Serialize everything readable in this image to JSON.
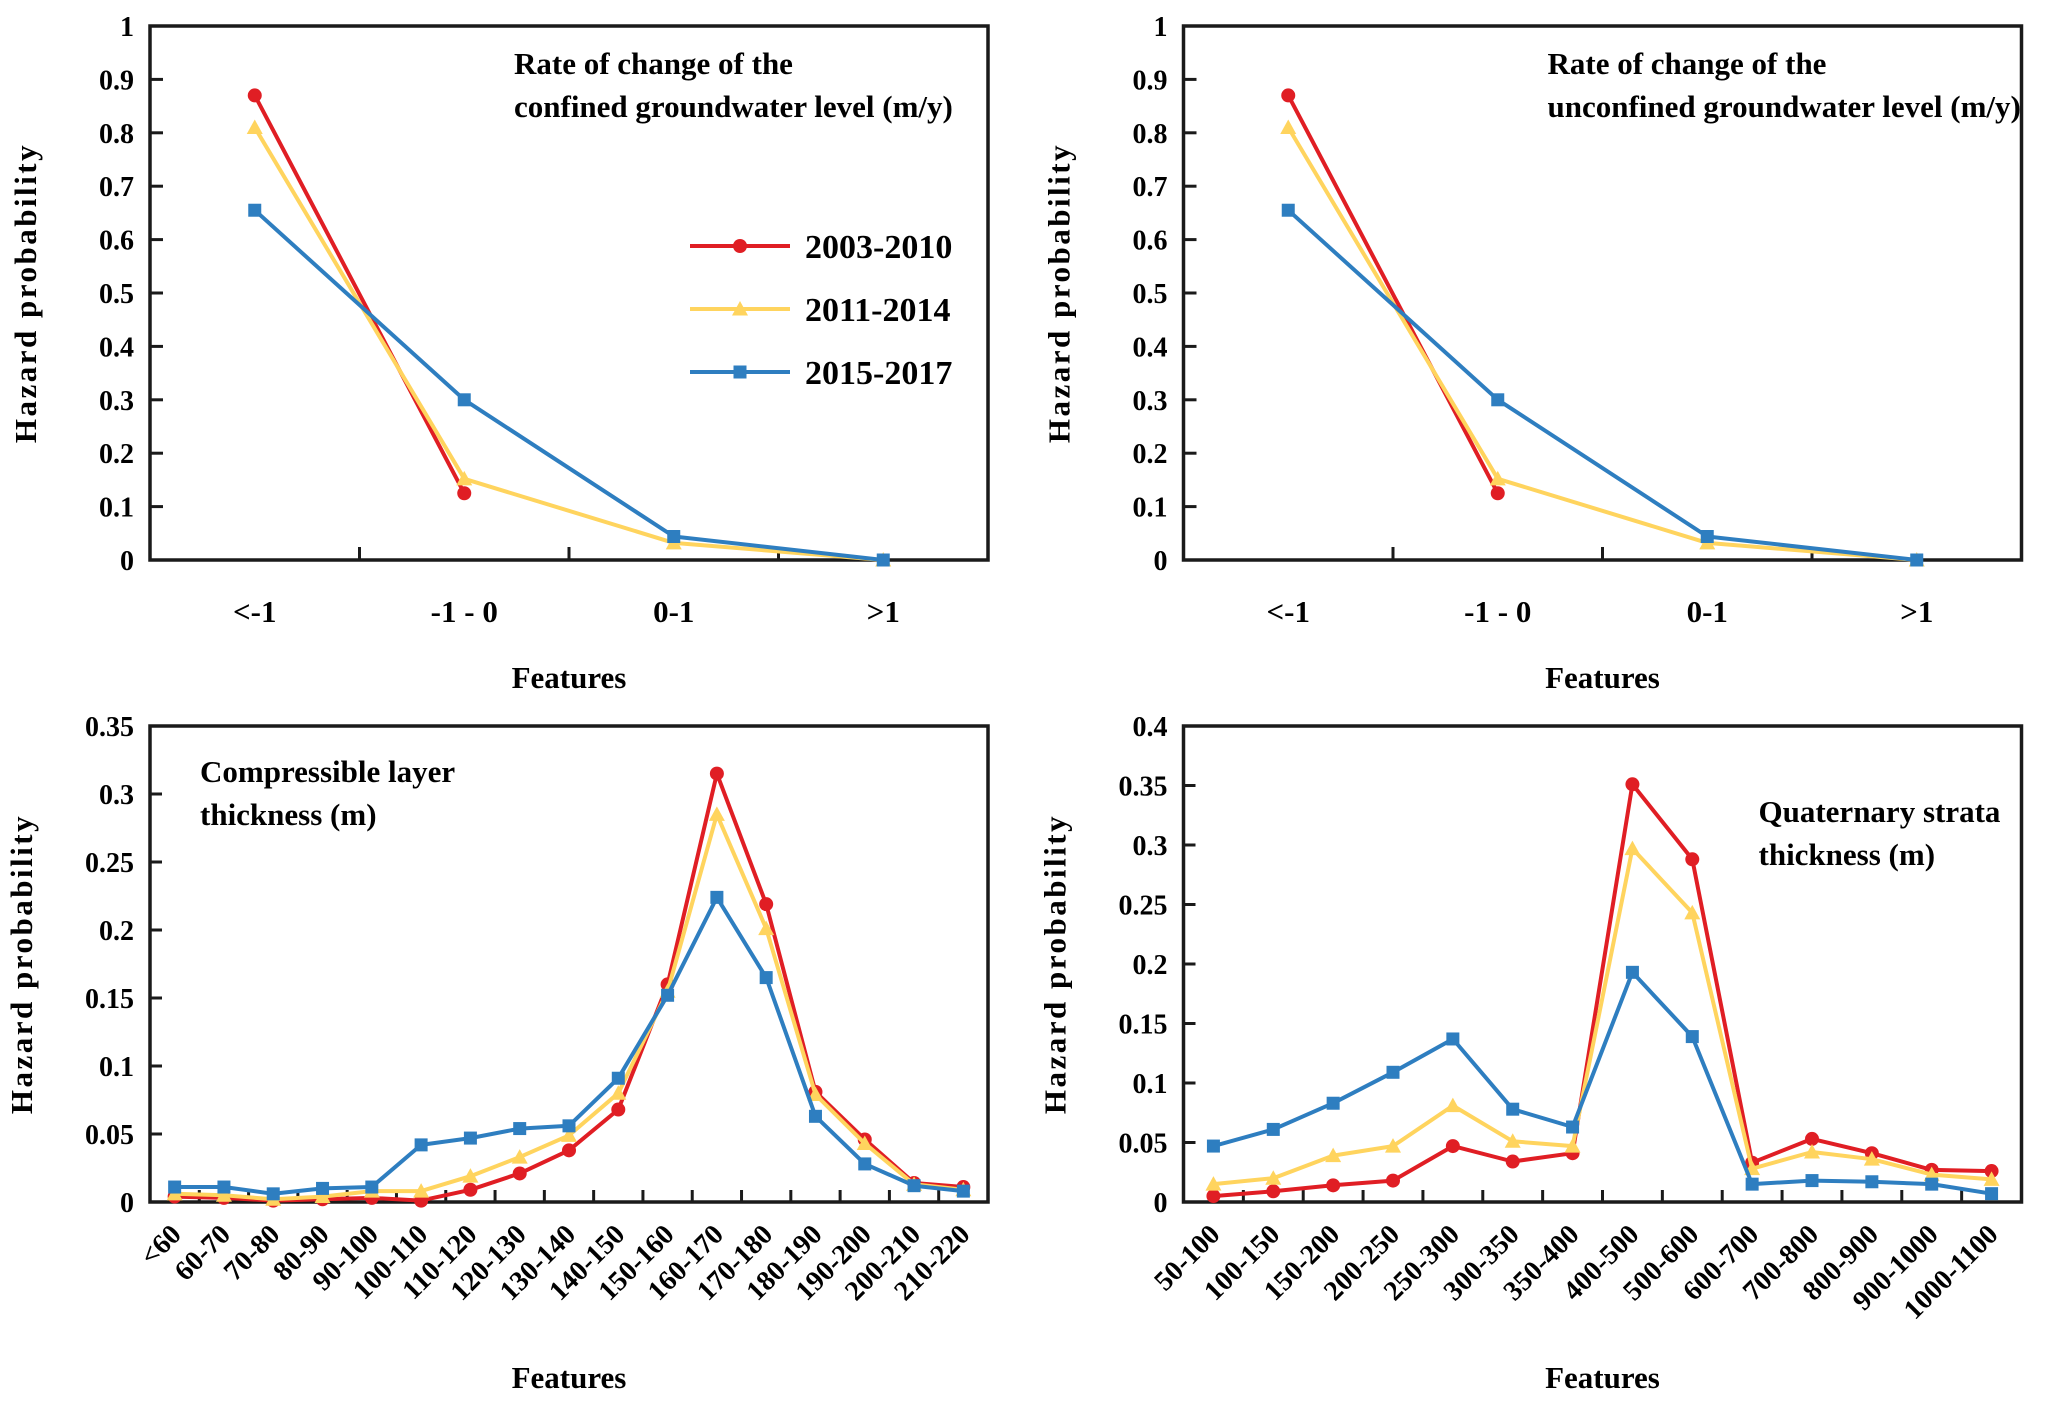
{
  "figure": {
    "background": "#ffffff",
    "axis_color": "#1a1a1a",
    "text_color": "#000000"
  },
  "legend": {
    "items": [
      {
        "label": "2003-2010",
        "color": "#E01E24",
        "marker": "circle"
      },
      {
        "label": "2011-2014",
        "color": "#FFD45E",
        "marker": "triangle"
      },
      {
        "label": "2015-2017",
        "color": "#2E7EC0",
        "marker": "square"
      }
    ]
  },
  "chart_data": [
    {
      "type": "line",
      "id": "confined-groundwater-rate",
      "title_lines": [
        "Rate of change of the",
        "confined groundwater level (m/y)"
      ],
      "xlabel": "Features",
      "ylabel": "Hazard probability",
      "ylim": [
        0,
        1
      ],
      "ytick_step": 0.1,
      "yticks": [
        "0",
        "0.1",
        "0.2",
        "0.3",
        "0.4",
        "0.5",
        "0.6",
        "0.7",
        "0.8",
        "0.9",
        "1"
      ],
      "categories": [
        "<-1",
        "-1 - 0",
        "0-1",
        ">1"
      ],
      "layout": "top",
      "grid": false,
      "legend": true,
      "legend_position": "right-center",
      "title_offset": {
        "x": 514,
        "y": 74
      },
      "series": [
        {
          "name": "2003-2010",
          "values": [
            0.87,
            0.125,
            null,
            null
          ]
        },
        {
          "name": "2011-2014",
          "values": [
            0.81,
            0.152,
            0.032,
            0
          ]
        },
        {
          "name": "2015-2017",
          "values": [
            0.655,
            0.3,
            0.044,
            0
          ]
        }
      ]
    },
    {
      "type": "line",
      "id": "unconfined-groundwater-rate",
      "title_lines": [
        "Rate of change of the",
        "unconfined groundwater level (m/y)"
      ],
      "xlabel": "Features",
      "ylabel": "Hazard probability",
      "ylim": [
        0,
        1
      ],
      "ytick_step": 0.1,
      "yticks": [
        "0",
        "0.1",
        "0.2",
        "0.3",
        "0.4",
        "0.5",
        "0.6",
        "0.7",
        "0.8",
        "0.9",
        "1"
      ],
      "categories": [
        "<-1",
        "-1 - 0",
        "0-1",
        ">1"
      ],
      "layout": "top",
      "grid": false,
      "legend": false,
      "title_offset": {
        "x": 514,
        "y": 74
      },
      "series": [
        {
          "name": "2003-2010",
          "values": [
            0.87,
            0.125,
            null,
            null
          ]
        },
        {
          "name": "2011-2014",
          "values": [
            0.81,
            0.152,
            0.032,
            0
          ]
        },
        {
          "name": "2015-2017",
          "values": [
            0.655,
            0.3,
            0.044,
            0
          ]
        }
      ]
    },
    {
      "type": "line",
      "id": "compressible-layer-thickness",
      "title_lines": [
        "Compressible layer",
        "thickness (m)"
      ],
      "xlabel": "Features",
      "ylabel": "Hazard probability",
      "ylim": [
        0,
        0.35
      ],
      "ytick_step": 0.05,
      "yticks": [
        "0",
        "0.05",
        "0.1",
        "0.15",
        "0.2",
        "0.25",
        "0.3",
        "0.35"
      ],
      "categories": [
        "<60",
        "60-70",
        "70-80",
        "80-90",
        "90-100",
        "100-110",
        "110-120",
        "120-130",
        "130-140",
        "140-150",
        "150-160",
        "160-170",
        "170-180",
        "180-190",
        "190-200",
        "200-210",
        "210-220"
      ],
      "layout": "bottom",
      "grid": false,
      "legend": false,
      "title_offset": {
        "x": 200,
        "y": 80
      },
      "series": [
        {
          "name": "2003-2010",
          "values": [
            0.004,
            0.003,
            0.001,
            0.002,
            0.003,
            0.001,
            0.009,
            0.021,
            0.038,
            0.068,
            0.16,
            0.315,
            0.219,
            0.081,
            0.046,
            0.014,
            0.011
          ]
        },
        {
          "name": "2011-2014",
          "values": [
            0.006,
            0.005,
            0.002,
            0.004,
            0.008,
            0.008,
            0.019,
            0.033,
            0.049,
            0.08,
            0.155,
            0.285,
            0.201,
            0.079,
            0.043,
            0.013,
            0.009
          ]
        },
        {
          "name": "2015-2017",
          "values": [
            0.011,
            0.011,
            0.006,
            0.01,
            0.011,
            0.042,
            0.047,
            0.054,
            0.056,
            0.091,
            0.152,
            0.224,
            0.165,
            0.063,
            0.028,
            0.012,
            0.008
          ]
        }
      ]
    },
    {
      "type": "line",
      "id": "quaternary-strata-thickness",
      "title_lines": [
        "Quaternary strata",
        "thickness (m)"
      ],
      "xlabel": "Features",
      "ylabel": "Hazard probability",
      "ylim": [
        0,
        0.4
      ],
      "ytick_step": 0.05,
      "yticks": [
        "0",
        "0.05",
        "0.1",
        "0.15",
        "0.2",
        "0.25",
        "0.3",
        "0.35",
        "0.4"
      ],
      "categories": [
        "50-100",
        "100-150",
        "150-200",
        "200-250",
        "250-300",
        "300-350",
        "350-400",
        "400-500",
        "500-600",
        "600-700",
        "700-800",
        "800-900",
        "900-1000",
        "1000-1100"
      ],
      "layout": "bottom",
      "grid": false,
      "legend": false,
      "title_offset": {
        "x": 725,
        "y": 120
      },
      "series": [
        {
          "name": "2003-2010",
          "values": [
            0.005,
            0.009,
            0.014,
            0.018,
            0.047,
            0.034,
            0.041,
            0.351,
            0.288,
            0.033,
            0.053,
            0.041,
            0.027,
            0.026
          ]
        },
        {
          "name": "2011-2014",
          "values": [
            0.015,
            0.02,
            0.039,
            0.047,
            0.081,
            0.051,
            0.047,
            0.297,
            0.243,
            0.028,
            0.042,
            0.036,
            0.023,
            0.019
          ]
        },
        {
          "name": "2015-2017",
          "values": [
            0.047,
            0.061,
            0.083,
            0.109,
            0.137,
            0.078,
            0.063,
            0.193,
            0.139,
            0.015,
            0.018,
            0.017,
            0.015,
            0.007
          ]
        }
      ]
    }
  ]
}
